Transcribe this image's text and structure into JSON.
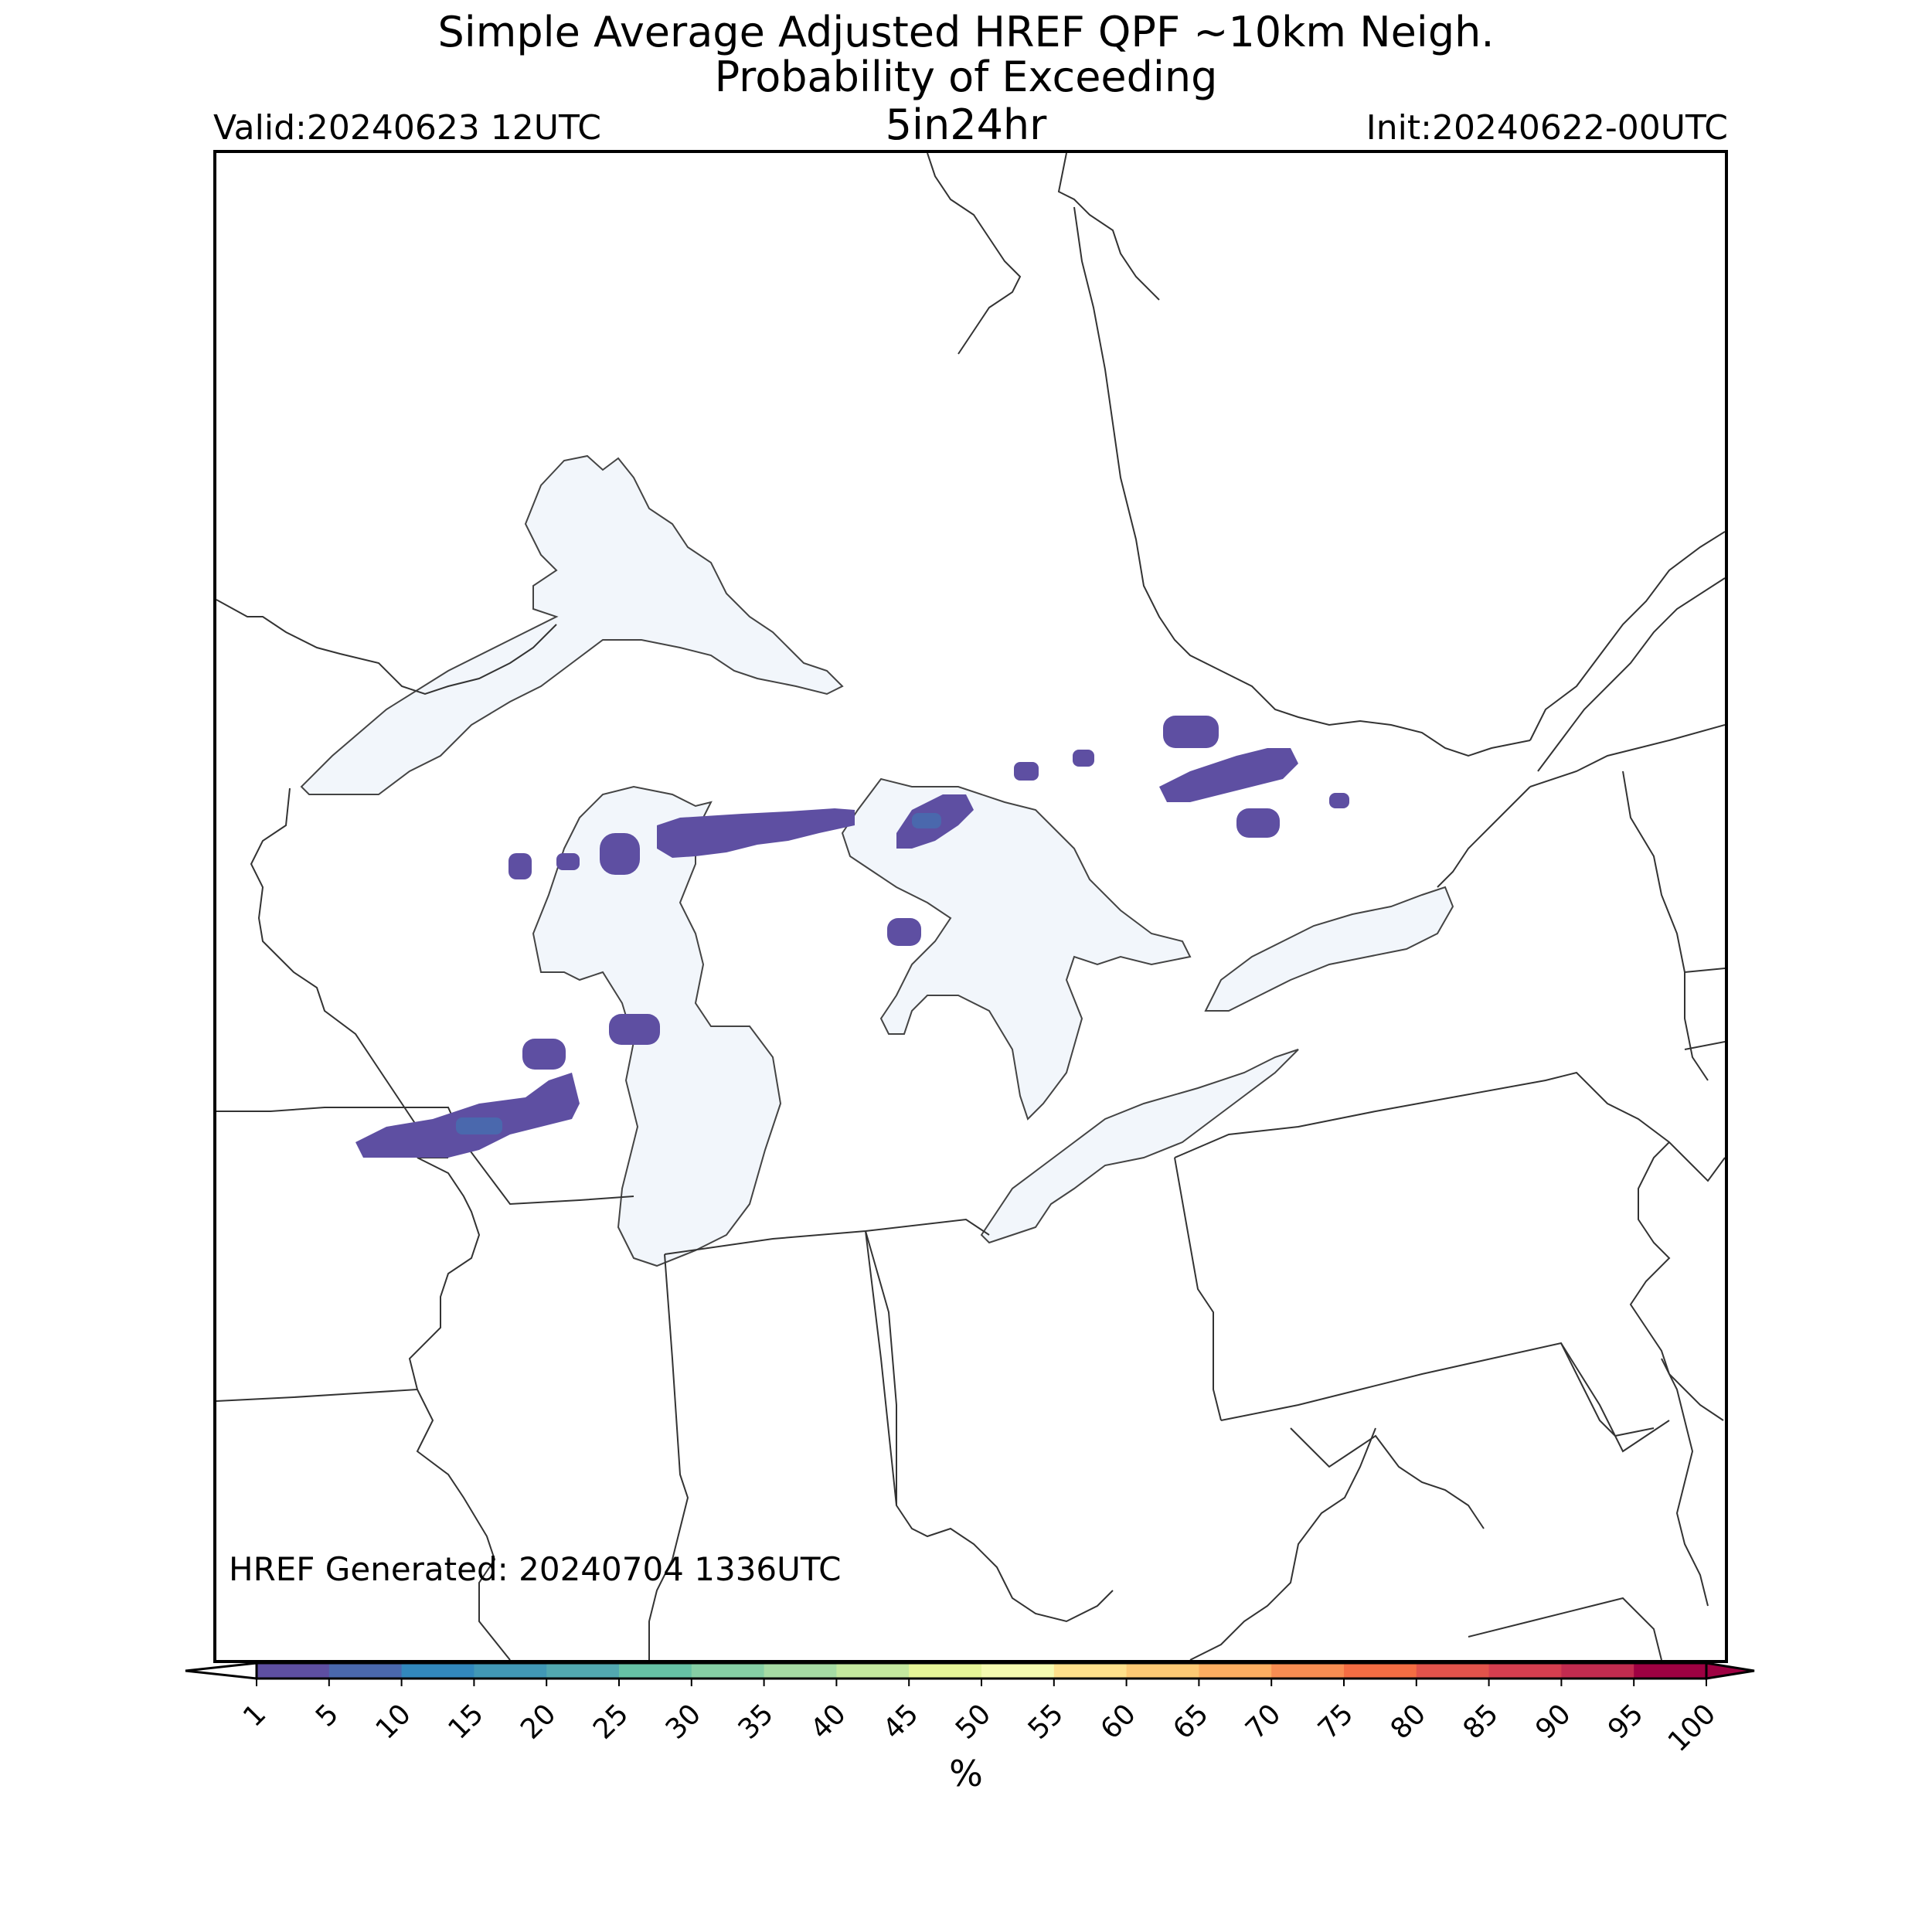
{
  "title": {
    "line1": "Simple Average Adjusted HREF QPF ~10km Neigh.",
    "line2": "Probability of Exceeding",
    "line3": "5in24hr"
  },
  "valid_label": "Valid:20240623 12UTC",
  "init_label": "Init:20240622-00UTC",
  "generated_label": "HREF Generated: 20240704 1336UTC",
  "colorbar": {
    "unit": "%",
    "ticks": [
      "1",
      "5",
      "10",
      "15",
      "20",
      "25",
      "30",
      "35",
      "40",
      "45",
      "50",
      "55",
      "60",
      "65",
      "70",
      "75",
      "80",
      "85",
      "90",
      "95",
      "100"
    ],
    "colors": [
      "#5e4fa2",
      "#4a68ad",
      "#3288bd",
      "#4198b6",
      "#52a8b0",
      "#66c2a5",
      "#86cfa5",
      "#a6dba4",
      "#c4e89f",
      "#e6f598",
      "#f5fbb1",
      "#fee08b",
      "#fdc974",
      "#fdae61",
      "#f88d52",
      "#f46d43",
      "#e2534b",
      "#d53e4f",
      "#c22b4f",
      "#9e0142"
    ],
    "under_color": "#ffffff",
    "over_color": "#9e0142"
  },
  "map": {
    "lake_color": "#f2f6fb",
    "line_color": "#000000",
    "probability_color": "#5e4fa2"
  }
}
